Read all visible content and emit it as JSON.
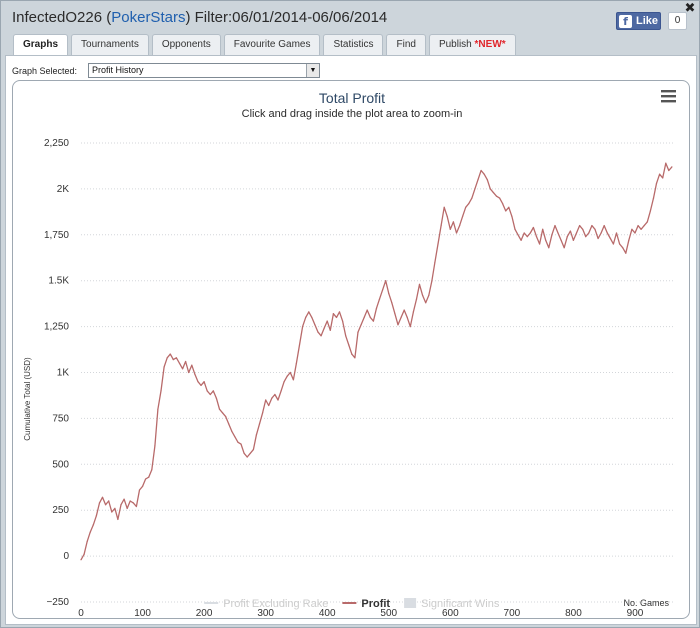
{
  "window": {
    "user": "InfectedO226",
    "site": "PokerStars",
    "open_paren": " (",
    "close_paren": ")",
    "filter": " Filter:06/01/2014-06/06/2014",
    "close_glyph": "✖",
    "like_label": "Like",
    "fb_glyph": "f",
    "like_count": "0"
  },
  "tabs": [
    {
      "label": "Graphs",
      "active": true
    },
    {
      "label": "Tournaments"
    },
    {
      "label": "Opponents"
    },
    {
      "label": "Favourite Games"
    },
    {
      "label": "Statistics"
    },
    {
      "label": "Find"
    },
    {
      "label": "Publish",
      "badge": "*NEW*"
    }
  ],
  "graph_select": {
    "label": "Graph Selected:",
    "value": "Profit History",
    "arrow": "▼"
  },
  "chart_data": {
    "type": "line",
    "title": "Total Profit",
    "subtitle": "Click and drag inside the plot area to zoom-in",
    "xlabel": "No. Games",
    "ylabel": "Cumulative Total (USD)",
    "xlim": [
      0,
      965
    ],
    "ylim": [
      -250,
      2250
    ],
    "x_ticks": [
      0,
      100,
      200,
      300,
      400,
      500,
      600,
      700,
      800,
      900
    ],
    "y_ticks": [
      {
        "value": -250,
        "label": "−250"
      },
      {
        "value": 0,
        "label": "0"
      },
      {
        "value": 250,
        "label": "250"
      },
      {
        "value": 500,
        "label": "500"
      },
      {
        "value": 750,
        "label": "750"
      },
      {
        "value": 1000,
        "label": "1K"
      },
      {
        "value": 1250,
        "label": "1,250"
      },
      {
        "value": 1500,
        "label": "1.5K"
      },
      {
        "value": 1750,
        "label": "1,750"
      },
      {
        "value": 2000,
        "label": "2K"
      },
      {
        "value": 2250,
        "label": "2,250"
      }
    ],
    "grid": true,
    "legend_position": "bottom",
    "legend": [
      {
        "name": "Profit Excluding Rake",
        "color": "#d9dde2",
        "kind": "line"
      },
      {
        "name": "Profit",
        "color": "#b86a6a",
        "kind": "line"
      },
      {
        "name": "Significant Wins",
        "color": "#d9dde2",
        "kind": "box"
      }
    ],
    "series": [
      {
        "name": "Profit",
        "color": "#b86a6a",
        "points": [
          [
            0,
            -20
          ],
          [
            5,
            10
          ],
          [
            10,
            80
          ],
          [
            15,
            130
          ],
          [
            20,
            170
          ],
          [
            25,
            220
          ],
          [
            30,
            290
          ],
          [
            35,
            320
          ],
          [
            40,
            280
          ],
          [
            45,
            300
          ],
          [
            50,
            240
          ],
          [
            55,
            260
          ],
          [
            60,
            200
          ],
          [
            65,
            280
          ],
          [
            70,
            310
          ],
          [
            75,
            260
          ],
          [
            80,
            300
          ],
          [
            85,
            290
          ],
          [
            90,
            270
          ],
          [
            95,
            360
          ],
          [
            100,
            380
          ],
          [
            105,
            420
          ],
          [
            110,
            430
          ],
          [
            115,
            470
          ],
          [
            120,
            600
          ],
          [
            125,
            800
          ],
          [
            130,
            900
          ],
          [
            135,
            1030
          ],
          [
            140,
            1080
          ],
          [
            145,
            1100
          ],
          [
            150,
            1070
          ],
          [
            155,
            1080
          ],
          [
            160,
            1050
          ],
          [
            165,
            1020
          ],
          [
            170,
            1060
          ],
          [
            175,
            1000
          ],
          [
            180,
            1040
          ],
          [
            185,
            990
          ],
          [
            190,
            950
          ],
          [
            195,
            930
          ],
          [
            200,
            950
          ],
          [
            205,
            900
          ],
          [
            210,
            880
          ],
          [
            215,
            900
          ],
          [
            220,
            860
          ],
          [
            225,
            800
          ],
          [
            230,
            780
          ],
          [
            235,
            760
          ],
          [
            240,
            720
          ],
          [
            245,
            680
          ],
          [
            250,
            650
          ],
          [
            255,
            620
          ],
          [
            260,
            610
          ],
          [
            265,
            560
          ],
          [
            270,
            540
          ],
          [
            275,
            560
          ],
          [
            280,
            580
          ],
          [
            285,
            660
          ],
          [
            290,
            720
          ],
          [
            295,
            780
          ],
          [
            300,
            850
          ],
          [
            305,
            820
          ],
          [
            310,
            860
          ],
          [
            315,
            880
          ],
          [
            320,
            850
          ],
          [
            325,
            900
          ],
          [
            330,
            950
          ],
          [
            335,
            980
          ],
          [
            340,
            1000
          ],
          [
            345,
            960
          ],
          [
            350,
            1050
          ],
          [
            355,
            1150
          ],
          [
            360,
            1250
          ],
          [
            365,
            1300
          ],
          [
            370,
            1330
          ],
          [
            375,
            1300
          ],
          [
            380,
            1260
          ],
          [
            385,
            1220
          ],
          [
            390,
            1200
          ],
          [
            395,
            1240
          ],
          [
            400,
            1280
          ],
          [
            405,
            1230
          ],
          [
            410,
            1320
          ],
          [
            415,
            1300
          ],
          [
            420,
            1330
          ],
          [
            425,
            1280
          ],
          [
            430,
            1200
          ],
          [
            435,
            1150
          ],
          [
            440,
            1100
          ],
          [
            445,
            1080
          ],
          [
            450,
            1220
          ],
          [
            455,
            1260
          ],
          [
            460,
            1300
          ],
          [
            465,
            1340
          ],
          [
            470,
            1300
          ],
          [
            475,
            1280
          ],
          [
            480,
            1350
          ],
          [
            485,
            1400
          ],
          [
            490,
            1450
          ],
          [
            495,
            1500
          ],
          [
            500,
            1430
          ],
          [
            505,
            1380
          ],
          [
            510,
            1320
          ],
          [
            515,
            1260
          ],
          [
            520,
            1300
          ],
          [
            525,
            1340
          ],
          [
            530,
            1300
          ],
          [
            535,
            1250
          ],
          [
            540,
            1330
          ],
          [
            545,
            1400
          ],
          [
            550,
            1480
          ],
          [
            555,
            1420
          ],
          [
            560,
            1380
          ],
          [
            565,
            1420
          ],
          [
            570,
            1500
          ],
          [
            575,
            1600
          ],
          [
            580,
            1700
          ],
          [
            585,
            1800
          ],
          [
            590,
            1900
          ],
          [
            595,
            1850
          ],
          [
            600,
            1780
          ],
          [
            605,
            1820
          ],
          [
            610,
            1760
          ],
          [
            615,
            1800
          ],
          [
            620,
            1850
          ],
          [
            625,
            1900
          ],
          [
            630,
            1920
          ],
          [
            635,
            1950
          ],
          [
            640,
            2000
          ],
          [
            645,
            2050
          ],
          [
            650,
            2100
          ],
          [
            655,
            2080
          ],
          [
            660,
            2050
          ],
          [
            665,
            2000
          ],
          [
            670,
            1980
          ],
          [
            675,
            1960
          ],
          [
            680,
            1950
          ],
          [
            685,
            1920
          ],
          [
            690,
            1880
          ],
          [
            695,
            1900
          ],
          [
            700,
            1850
          ],
          [
            705,
            1780
          ],
          [
            710,
            1750
          ],
          [
            715,
            1720
          ],
          [
            720,
            1760
          ],
          [
            725,
            1740
          ],
          [
            730,
            1760
          ],
          [
            735,
            1790
          ],
          [
            740,
            1740
          ],
          [
            745,
            1700
          ],
          [
            750,
            1780
          ],
          [
            755,
            1720
          ],
          [
            760,
            1680
          ],
          [
            765,
            1750
          ],
          [
            770,
            1800
          ],
          [
            775,
            1760
          ],
          [
            780,
            1720
          ],
          [
            785,
            1680
          ],
          [
            790,
            1740
          ],
          [
            795,
            1770
          ],
          [
            800,
            1720
          ],
          [
            805,
            1760
          ],
          [
            810,
            1800
          ],
          [
            815,
            1780
          ],
          [
            820,
            1740
          ],
          [
            825,
            1760
          ],
          [
            830,
            1800
          ],
          [
            835,
            1780
          ],
          [
            840,
            1730
          ],
          [
            845,
            1760
          ],
          [
            850,
            1800
          ],
          [
            855,
            1760
          ],
          [
            860,
            1730
          ],
          [
            865,
            1700
          ],
          [
            870,
            1760
          ],
          [
            875,
            1700
          ],
          [
            880,
            1680
          ],
          [
            885,
            1650
          ],
          [
            890,
            1720
          ],
          [
            895,
            1780
          ],
          [
            900,
            1760
          ],
          [
            905,
            1800
          ],
          [
            910,
            1780
          ],
          [
            915,
            1800
          ],
          [
            920,
            1820
          ],
          [
            925,
            1880
          ],
          [
            930,
            1950
          ],
          [
            935,
            2030
          ],
          [
            940,
            2080
          ],
          [
            945,
            2060
          ],
          [
            950,
            2140
          ],
          [
            955,
            2100
          ],
          [
            960,
            2120
          ]
        ]
      }
    ]
  }
}
